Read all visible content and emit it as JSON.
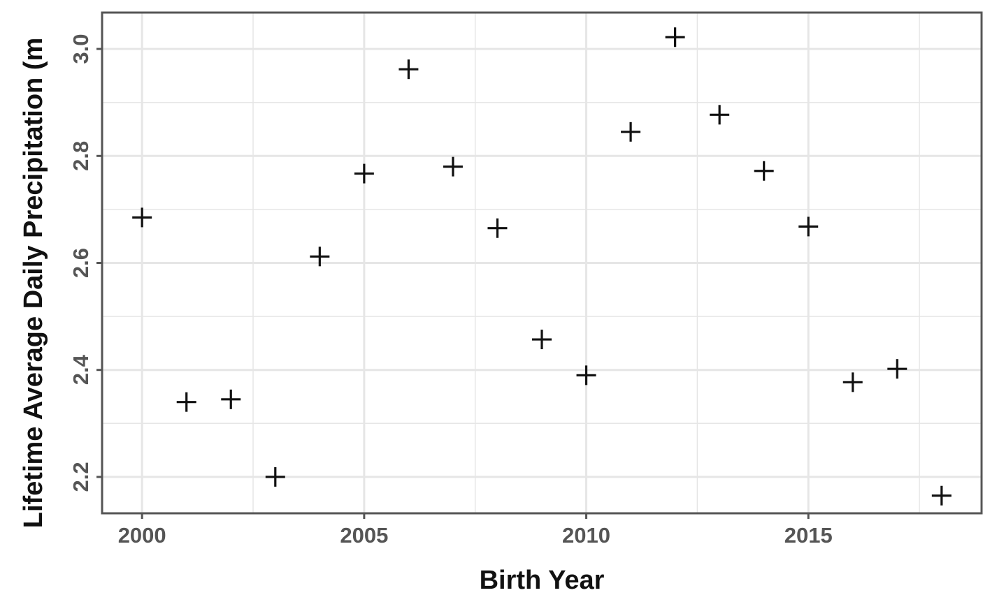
{
  "chart_data": {
    "type": "scatter",
    "marker": "plus",
    "xlabel": "Birth Year",
    "ylabel": "Lifetime Average Daily Precipitation (m",
    "xlim": [
      1999.1,
      2018.9
    ],
    "ylim": [
      2.132,
      3.068
    ],
    "x_ticks": [
      2000,
      2005,
      2010,
      2015
    ],
    "x_tick_labels": [
      "2000",
      "2005",
      "2010",
      "2015"
    ],
    "y_ticks": [
      2.2,
      2.4,
      2.6,
      2.8,
      3.0
    ],
    "y_tick_labels": [
      "2.2",
      "2.4",
      "2.6",
      "2.8",
      "3.0"
    ],
    "grid": true,
    "colors": {
      "marker": "#111111",
      "grid": "#e6e6e6",
      "panel_border": "#555555"
    },
    "points": [
      {
        "x": 2000,
        "y": 2.685
      },
      {
        "x": 2001,
        "y": 2.34
      },
      {
        "x": 2002,
        "y": 2.345
      },
      {
        "x": 2003,
        "y": 2.2
      },
      {
        "x": 2004,
        "y": 2.612
      },
      {
        "x": 2005,
        "y": 2.767
      },
      {
        "x": 2006,
        "y": 2.962
      },
      {
        "x": 2007,
        "y": 2.78
      },
      {
        "x": 2008,
        "y": 2.665
      },
      {
        "x": 2009,
        "y": 2.457
      },
      {
        "x": 2010,
        "y": 2.39
      },
      {
        "x": 2011,
        "y": 2.845
      },
      {
        "x": 2012,
        "y": 3.022
      },
      {
        "x": 2013,
        "y": 2.877
      },
      {
        "x": 2014,
        "y": 2.772
      },
      {
        "x": 2015,
        "y": 2.668
      },
      {
        "x": 2016,
        "y": 2.377
      },
      {
        "x": 2017,
        "y": 2.402
      },
      {
        "x": 2018,
        "y": 2.165
      }
    ]
  }
}
